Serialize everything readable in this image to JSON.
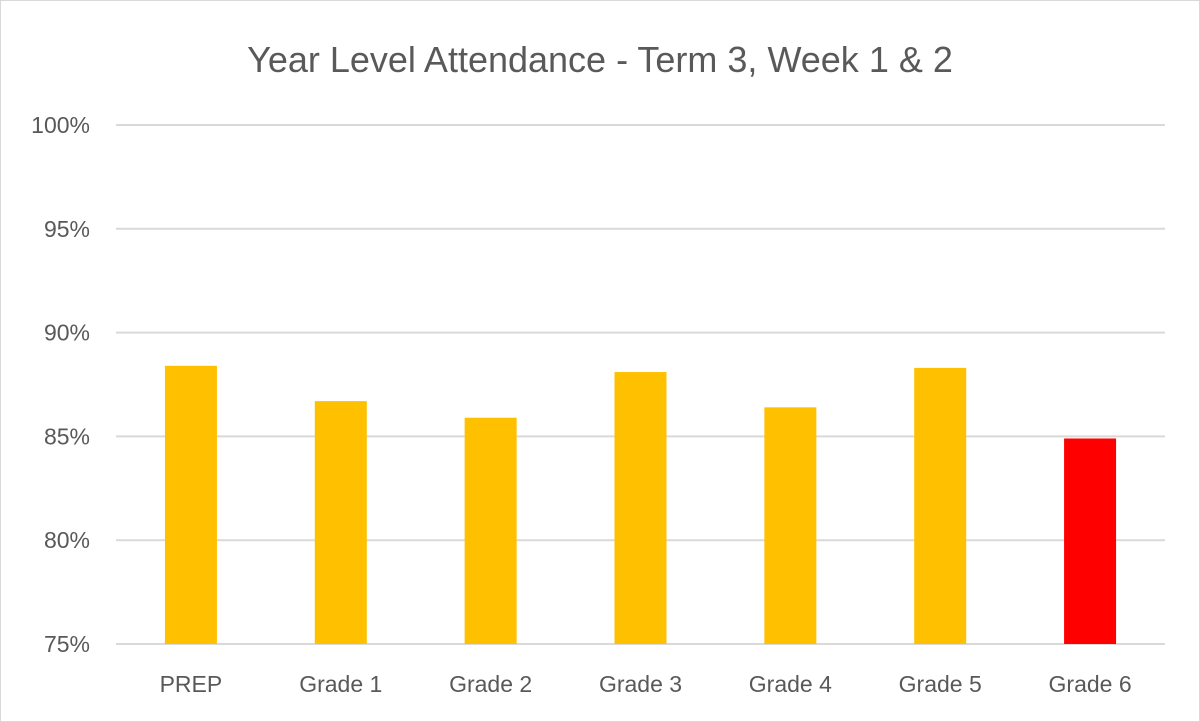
{
  "chart_data": {
    "type": "bar",
    "title": "Year Level Attendance - Term 3, Week 1 & 2",
    "xlabel": "",
    "ylabel": "",
    "ylim": [
      75,
      100
    ],
    "yticks": [
      75,
      80,
      85,
      90,
      95,
      100
    ],
    "ytick_labels": [
      "75%",
      "80%",
      "85%",
      "90%",
      "95%",
      "100%"
    ],
    "grid": true,
    "categories": [
      "PREP",
      "Grade 1",
      "Grade 2",
      "Grade 3",
      "Grade 4",
      "Grade 5",
      "Grade 6"
    ],
    "values": [
      88.4,
      86.7,
      85.9,
      88.1,
      86.4,
      88.3,
      84.9
    ],
    "bar_colors": [
      "#FFC000",
      "#FFC000",
      "#FFC000",
      "#FFC000",
      "#FFC000",
      "#FFC000",
      "#FF0000"
    ],
    "grid_color": "#d9d9d9"
  }
}
